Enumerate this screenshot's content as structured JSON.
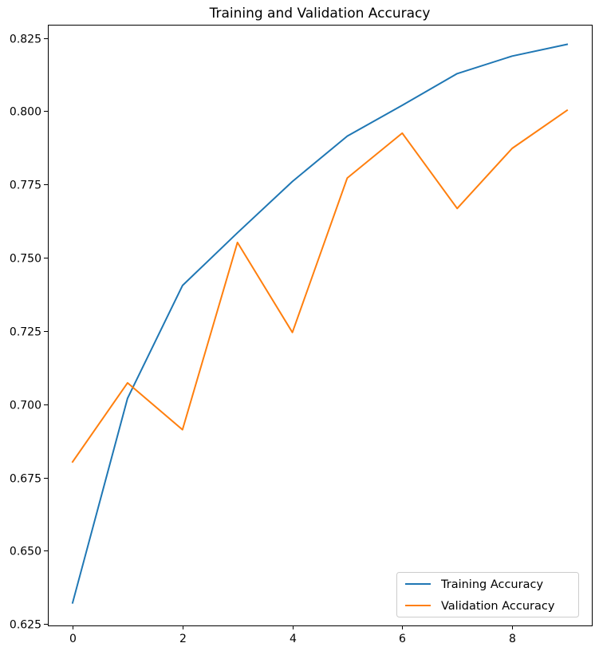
{
  "chart_data": {
    "type": "line",
    "title": "Training and Validation Accuracy",
    "xlabel": "",
    "ylabel": "",
    "xlim": [
      -0.45,
      9.45
    ],
    "ylim": [
      0.6245,
      0.8295
    ],
    "x_ticks": [
      0,
      2,
      4,
      6,
      8
    ],
    "x_tick_labels": [
      "0",
      "2",
      "4",
      "6",
      "8"
    ],
    "y_ticks": [
      0.625,
      0.65,
      0.675,
      0.7,
      0.725,
      0.75,
      0.775,
      0.8,
      0.825
    ],
    "y_tick_labels": [
      "0.625",
      "0.650",
      "0.675",
      "0.700",
      "0.725",
      "0.750",
      "0.775",
      "0.800",
      "0.825"
    ],
    "grid": false,
    "legend_position": "lower-right",
    "x": [
      0,
      1,
      2,
      3,
      4,
      5,
      6,
      7,
      8,
      9
    ],
    "series": [
      {
        "name": "Training Accuracy",
        "color": "#1f77b4",
        "values": [
          0.6322,
          0.702,
          0.7405,
          0.7585,
          0.776,
          0.7915,
          0.802,
          0.8128,
          0.8188,
          0.8228
        ]
      },
      {
        "name": "Validation Accuracy",
        "color": "#ff7f0e",
        "values": [
          0.6803,
          0.7073,
          0.6913,
          0.7552,
          0.7245,
          0.7772,
          0.7925,
          0.7668,
          0.7873,
          0.8003
        ]
      }
    ]
  }
}
